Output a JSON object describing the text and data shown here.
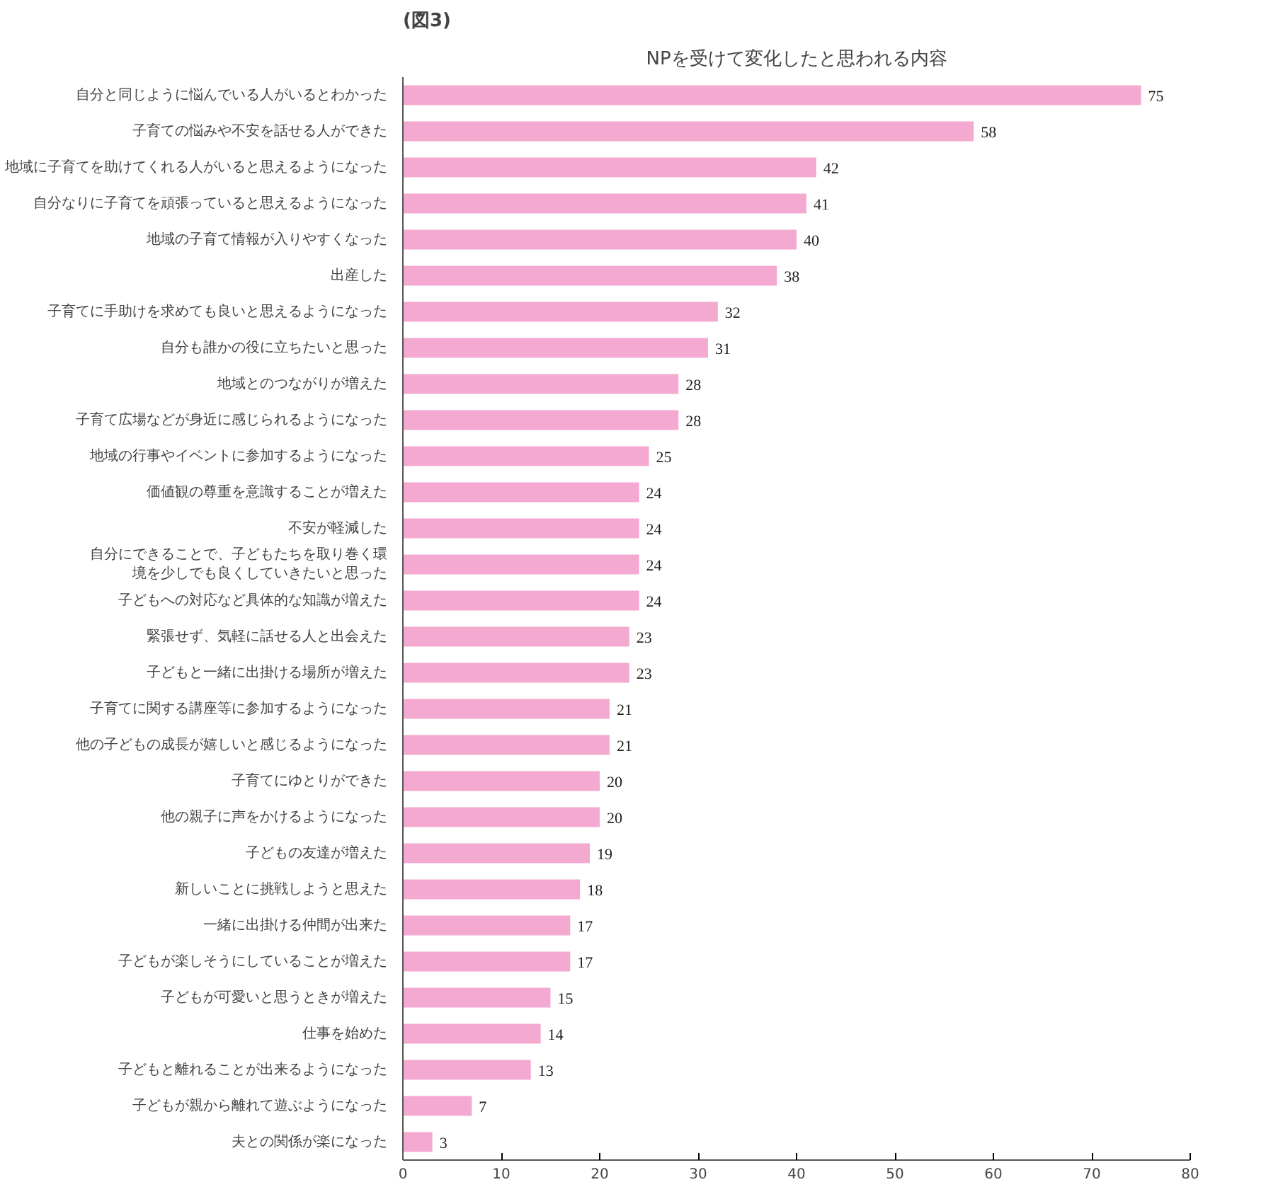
{
  "chart_data": {
    "type": "bar",
    "orientation": "horizontal",
    "title": "NPを受けて変化したと思われる内容",
    "annotations": [
      "(図3)"
    ],
    "categories": [
      "自分と同じように悩んでいる人がいるとわかった",
      "子育ての悩みや不安を話せる人ができた",
      "地域に子育てを助けてくれる人がいると思えるようになった",
      "自分なりに子育てを頑張っていると思えるようになった",
      "地域の子育て情報が入りやすくなった",
      "出産した",
      "子育てに手助けを求めても良いと思えるようになった",
      "自分も誰かの役に立ちたいと思った",
      "地域とのつながりが増えた",
      "子育て広場などが身近に感じられるようになった",
      "地域の行事やイベントに参加するようになった",
      "価値観の尊重を意識することが増えた",
      "不安が軽減した",
      "自分にできることで、子どもたちを取り巻く環境を少しでも良くしていきたいと思った",
      "子どもへの対応など具体的な知識が増えた",
      "緊張せず、気軽に話せる人と出会えた",
      "子どもと一緒に出掛ける場所が増えた",
      "子育てに関する講座等に参加するようになった",
      "他の子どもの成長が嬉しいと感じるようになった",
      "子育てにゆとりができた",
      "他の親子に声をかけるようになった",
      "子どもの友達が増えた",
      "新しいことに挑戦しようと思えた",
      "一緒に出掛ける仲間が出来た",
      "子どもが楽しそうにしていることが増えた",
      "子どもが可愛いと思うときが増えた",
      "仕事を始めた",
      "子どもと離れることが出来るようになった",
      "子どもが親から離れて遊ぶようになった",
      "夫との関係が楽になった"
    ],
    "values": [
      75,
      58,
      42,
      41,
      40,
      38,
      32,
      31,
      28,
      28,
      25,
      24,
      24,
      24,
      24,
      23,
      23,
      21,
      21,
      20,
      20,
      19,
      18,
      17,
      17,
      15,
      14,
      13,
      7,
      3
    ],
    "color": "#f4a9d0",
    "xlim": [
      0,
      80
    ],
    "xticks": [
      0,
      10,
      20,
      30,
      40,
      50,
      60,
      70,
      80
    ],
    "data_labels": true,
    "grid": false
  }
}
